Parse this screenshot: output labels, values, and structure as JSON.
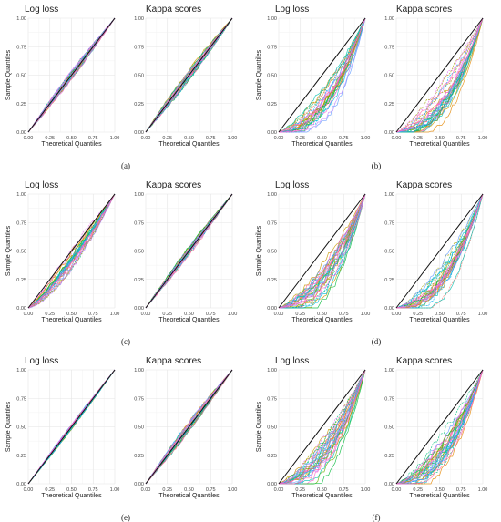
{
  "chart_data": {
    "type": "line",
    "description_free": true,
    "panel_labels": [
      "(a)",
      "(b)",
      "(c)",
      "(d)",
      "(e)",
      "(f)"
    ],
    "subplot_titles": [
      "Log loss",
      "Kappa scores"
    ],
    "xlabel": "Theoretical Quantiles",
    "ylabel": "Sample Quantiles",
    "xlim": [
      0,
      1
    ],
    "ylim": [
      0,
      1
    ],
    "xticks": [
      "0.00",
      "0.25",
      "0.50",
      "0.75",
      "1.00"
    ],
    "yticks": [
      "0.00",
      "0.25",
      "0.50",
      "0.75",
      "1.00"
    ],
    "grid": true,
    "reference_line": {
      "x": [
        0,
        1
      ],
      "y": [
        0,
        1
      ],
      "color": "#111111"
    },
    "series_colors": [
      "#f8766d",
      "#e58700",
      "#c99800",
      "#a3a500",
      "#6bb100",
      "#00ba38",
      "#00bf7d",
      "#00c0af",
      "#00bcd8",
      "#00b0f6",
      "#619cff",
      "#b983ff",
      "#e76bf3",
      "#fd61d1",
      "#ff67a4"
    ],
    "panels": [
      {
        "label": "(a)",
        "subplots": [
          {
            "title": "Log loss",
            "deviation": 0.0,
            "spread": 0.035
          },
          {
            "title": "Kappa scores",
            "deviation": 0.0,
            "spread": 0.045
          }
        ]
      },
      {
        "label": "(b)",
        "subplots": [
          {
            "title": "Log loss",
            "deviation": -0.3,
            "spread": 0.1
          },
          {
            "title": "Kappa scores",
            "deviation": -0.27,
            "spread": 0.1
          }
        ]
      },
      {
        "label": "(c)",
        "subplots": [
          {
            "title": "Log loss",
            "deviation": -0.06,
            "spread": 0.07
          },
          {
            "title": "Kappa scores",
            "deviation": -0.01,
            "spread": 0.035
          }
        ]
      },
      {
        "label": "(d)",
        "subplots": [
          {
            "title": "Log loss",
            "deviation": -0.3,
            "spread": 0.11
          },
          {
            "title": "Kappa scores",
            "deviation": -0.3,
            "spread": 0.1
          }
        ]
      },
      {
        "label": "(e)",
        "subplots": [
          {
            "title": "Log loss",
            "deviation": 0.0,
            "spread": 0.02
          },
          {
            "title": "Kappa scores",
            "deviation": 0.0,
            "spread": 0.04
          }
        ]
      },
      {
        "label": "(f)",
        "subplots": [
          {
            "title": "Log loss",
            "deviation": -0.3,
            "spread": 0.12
          },
          {
            "title": "Kappa scores",
            "deviation": -0.3,
            "spread": 0.11
          }
        ]
      }
    ]
  }
}
